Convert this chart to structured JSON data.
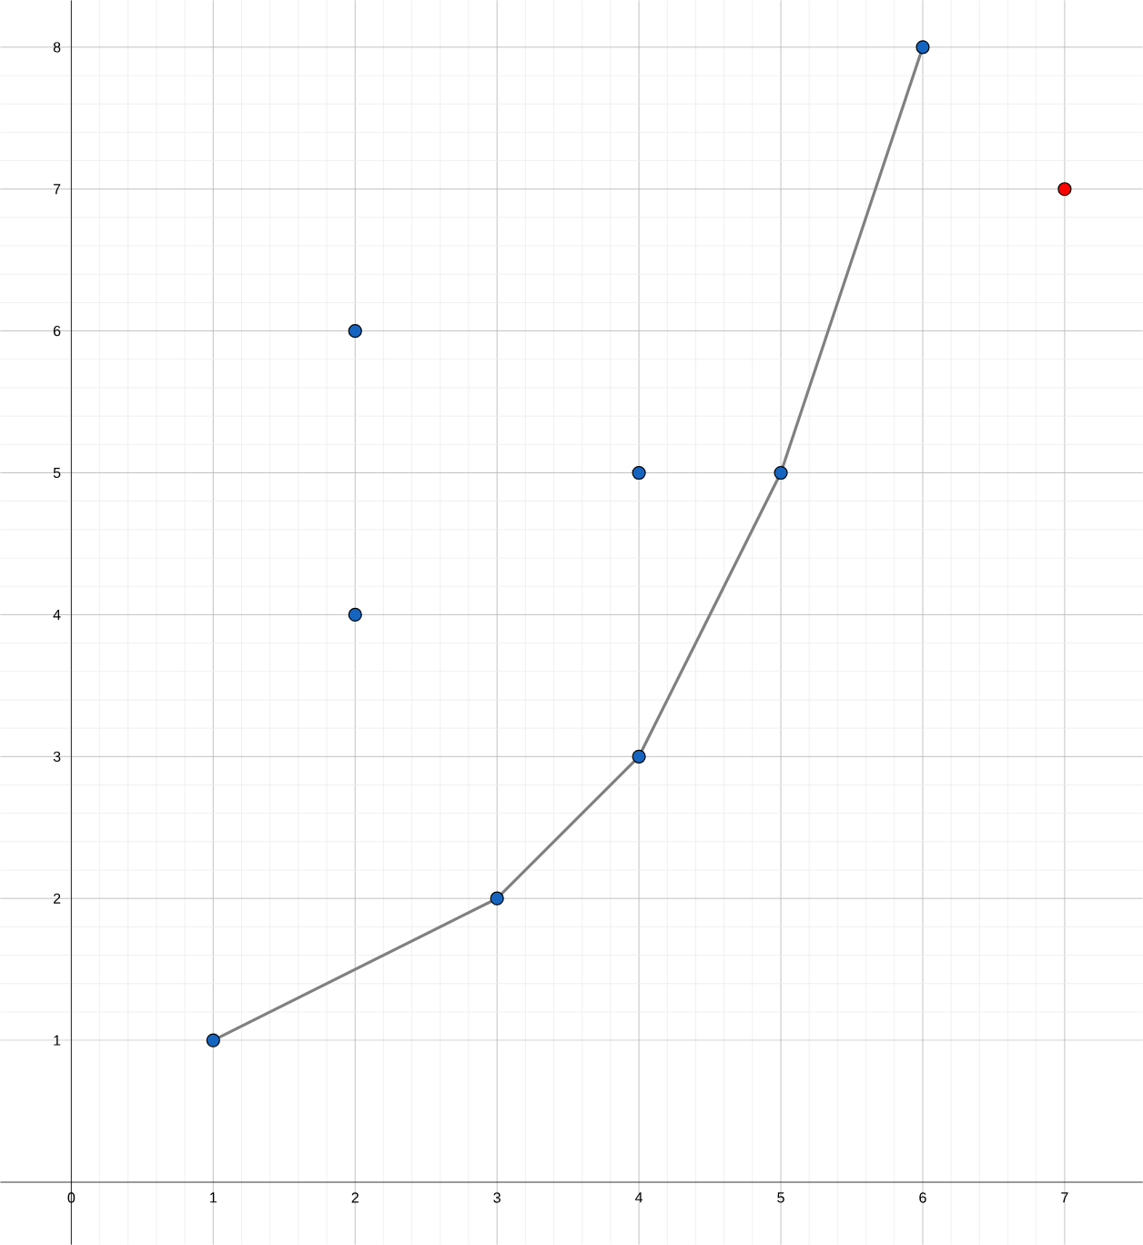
{
  "chart_data": {
    "type": "scatter",
    "grid": true,
    "xlim": [
      -0.5,
      7.55
    ],
    "ylim": [
      -0.44,
      8.33
    ],
    "xticks": [
      0,
      1,
      2,
      3,
      4,
      5,
      6,
      7
    ],
    "yticks": [
      1,
      2,
      3,
      4,
      5,
      6,
      7,
      8
    ],
    "series": [
      {
        "type": "line",
        "color": "#808080",
        "marker": "none",
        "x": [
          1,
          3,
          4,
          5,
          6
        ],
        "values": [
          1,
          2,
          3,
          5,
          8
        ]
      },
      {
        "color": "#1565c0",
        "marker": "circle",
        "x": [
          1,
          2,
          2,
          3,
          4,
          4,
          5,
          6
        ],
        "values": [
          1,
          6,
          4,
          2,
          5,
          3,
          5,
          8
        ]
      },
      {
        "color": "#ff0000",
        "marker": "circle",
        "x": [
          7
        ],
        "values": [
          7
        ]
      }
    ]
  }
}
